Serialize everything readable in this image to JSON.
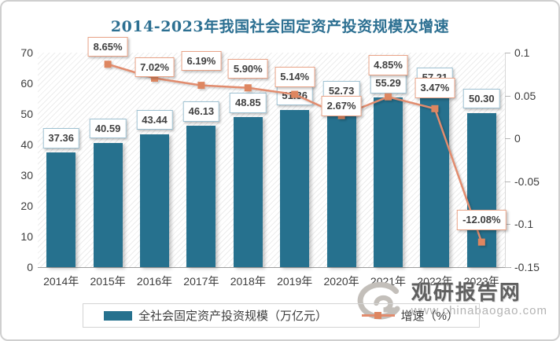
{
  "chart_data": {
    "type": "bar",
    "subtype": "combo-bar-line",
    "title": "2014-2023年我国社会固定资产投资规模及增速",
    "categories": [
      "2014年",
      "2015年",
      "2016年",
      "2017年",
      "2018年",
      "2019年",
      "2020年",
      "2021年",
      "2022年",
      "2023年"
    ],
    "series": [
      {
        "name": "全社会固定资产投资规模（万亿元）",
        "type": "bar",
        "axis": "left",
        "values": [
          37.36,
          40.59,
          43.44,
          46.13,
          48.85,
          51.36,
          52.73,
          55.29,
          57.21,
          50.3
        ]
      },
      {
        "name": "增速（%）",
        "type": "line",
        "axis": "right",
        "values": [
          null,
          8.65,
          7.02,
          6.19,
          5.9,
          5.14,
          2.67,
          4.85,
          3.47,
          -12.08
        ],
        "value_labels": [
          "",
          "8.65%",
          "7.02%",
          "6.19%",
          "5.90%",
          "5.14%",
          "2.67%",
          "4.85%",
          "3.47%",
          "-12.08%"
        ]
      }
    ],
    "left_axis": {
      "min": 0,
      "max": 70,
      "ticks": [
        0,
        10,
        20,
        30,
        40,
        50,
        60,
        70
      ]
    },
    "right_axis": {
      "min": -0.15,
      "max": 0.1,
      "ticks": [
        "0.1",
        "0.05",
        "0",
        "-0.05",
        "-0.1",
        "-0.15"
      ]
    },
    "grid": false,
    "legend_position": "bottom"
  },
  "colors": {
    "bar": "#26718E",
    "line": "#E28C6E",
    "marker": "#DE8660",
    "title": "#2D7092",
    "bar_label_border": "#9EC1D2",
    "line_label_border": "#E9A387"
  },
  "watermark": {
    "site_name": "观研报告网",
    "site_url": "www.chinabaogao.com"
  }
}
